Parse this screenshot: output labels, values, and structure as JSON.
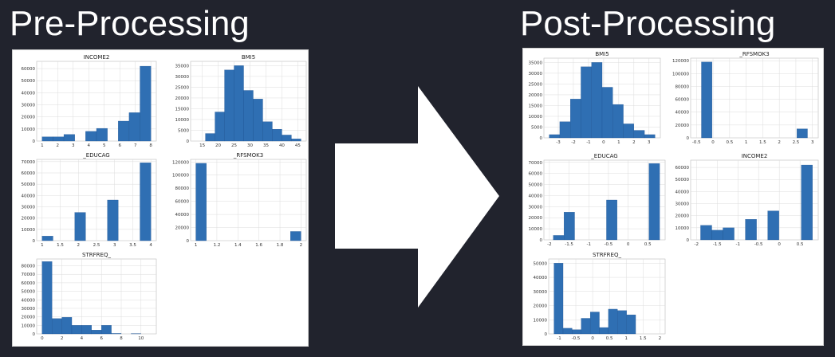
{
  "headings": {
    "pre": "Pre-Processing",
    "post": "Post-Processing"
  },
  "colors": {
    "background": "#21232d",
    "bar": "#2f6fb3",
    "grid": "#dcdcdc",
    "arrow": "#ffffff"
  },
  "icons": {
    "arrow": "right-arrow-icon"
  },
  "pre": {
    "charts": [
      {
        "type": "bar",
        "title": "INCOME2",
        "bins": [
          1.0,
          1.7,
          2.4,
          3.1,
          3.8,
          4.5,
          5.2,
          5.9,
          6.6,
          7.3,
          8.0
        ],
        "values": [
          3500,
          3500,
          5500,
          0,
          8000,
          10500,
          0,
          16500,
          23500,
          62000
        ],
        "xticks": [
          1,
          2,
          3,
          4,
          5,
          6,
          7,
          8
        ],
        "yticks": [
          0,
          10000,
          20000,
          30000,
          40000,
          50000,
          60000
        ],
        "ylim": [
          0,
          66000
        ]
      },
      {
        "type": "bar",
        "title": "BMI5",
        "bins": [
          13,
          16,
          19,
          22,
          25,
          28,
          31,
          34,
          37,
          40,
          43,
          46
        ],
        "values": [
          0,
          3500,
          13500,
          33000,
          35000,
          23500,
          19500,
          9000,
          5500,
          2800,
          1000
        ],
        "xticks": [
          15,
          20,
          25,
          30,
          35,
          40,
          45
        ],
        "yticks": [
          0,
          5000,
          10000,
          15000,
          20000,
          25000,
          30000,
          35000
        ],
        "ylim": [
          0,
          37000
        ]
      },
      {
        "type": "bar",
        "title": "_EDUCAG",
        "bins": [
          1.0,
          1.3,
          1.6,
          1.9,
          2.2,
          2.5,
          2.8,
          3.1,
          3.4,
          3.7,
          4.0
        ],
        "values": [
          4000,
          0,
          0,
          25000,
          0,
          0,
          36000,
          0,
          0,
          69000
        ],
        "xticks": [
          1.0,
          1.5,
          2.0,
          2.5,
          3.0,
          3.5,
          4.0
        ],
        "yticks": [
          0,
          10000,
          20000,
          30000,
          40000,
          50000,
          60000,
          70000
        ],
        "ylim": [
          0,
          72000
        ]
      },
      {
        "type": "bar",
        "title": "_RFSMOK3",
        "bins": [
          1.0,
          1.1,
          1.2,
          1.3,
          1.4,
          1.5,
          1.6,
          1.7,
          1.8,
          1.9,
          2.0
        ],
        "values": [
          118000,
          0,
          0,
          0,
          0,
          0,
          0,
          0,
          0,
          14000
        ],
        "xticks": [
          1.0,
          1.2,
          1.4,
          1.6,
          1.8,
          2.0
        ],
        "yticks": [
          0,
          20000,
          40000,
          60000,
          80000,
          100000,
          120000
        ],
        "ylim": [
          0,
          124000
        ]
      },
      {
        "type": "bar",
        "title": "STRFREQ_",
        "bins": [
          0,
          1,
          2,
          3,
          4,
          5,
          6,
          7,
          8,
          9,
          10,
          11
        ],
        "values": [
          85000,
          18000,
          19500,
          10000,
          10000,
          4500,
          10000,
          500,
          0,
          300,
          0
        ],
        "xticks": [
          0,
          2,
          4,
          6,
          8,
          10
        ],
        "yticks": [
          0,
          10000,
          20000,
          30000,
          40000,
          50000,
          60000,
          70000,
          80000
        ],
        "ylim": [
          0,
          88000
        ]
      }
    ]
  },
  "post": {
    "charts": [
      {
        "type": "bar",
        "title": "BMI5",
        "bins": [
          -3.6,
          -2.9,
          -2.2,
          -1.5,
          -0.8,
          -0.1,
          0.6,
          1.3,
          2.0,
          2.7,
          3.4
        ],
        "values": [
          1500,
          7500,
          18000,
          33000,
          35000,
          23500,
          15500,
          6500,
          3500,
          1500
        ],
        "xticks": [
          -3,
          -2,
          -1,
          0,
          1,
          2,
          3
        ],
        "yticks": [
          0,
          5000,
          10000,
          15000,
          20000,
          25000,
          30000,
          35000
        ],
        "ylim": [
          0,
          37000
        ]
      },
      {
        "type": "bar",
        "title": "_RFSMOK3",
        "bins": [
          -0.35,
          -0.03,
          0.29,
          0.61,
          0.93,
          1.25,
          1.57,
          1.89,
          2.21,
          2.53,
          2.85
        ],
        "values": [
          118000,
          0,
          0,
          0,
          0,
          0,
          0,
          0,
          0,
          14000
        ],
        "xticks": [
          -0.5,
          0.0,
          0.5,
          1.0,
          1.5,
          2.0,
          2.5,
          3.0
        ],
        "yticks": [
          0,
          20000,
          40000,
          60000,
          80000,
          100000,
          120000
        ],
        "ylim": [
          0,
          124000
        ]
      },
      {
        "type": "bar",
        "title": "_EDUCAG",
        "bins": [
          -1.9,
          -1.63,
          -1.36,
          -1.09,
          -0.82,
          -0.55,
          -0.28,
          -0.01,
          0.26,
          0.53,
          0.8
        ],
        "values": [
          4000,
          25000,
          0,
          0,
          0,
          36000,
          0,
          0,
          0,
          69000
        ],
        "xticks": [
          -2.0,
          -1.5,
          -1.0,
          -0.5,
          0.0,
          0.5
        ],
        "yticks": [
          0,
          10000,
          20000,
          30000,
          40000,
          50000,
          60000,
          70000
        ],
        "ylim": [
          0,
          72000
        ]
      },
      {
        "type": "bar",
        "title": "INCOME2",
        "bins": [
          -1.9,
          -1.63,
          -1.36,
          -1.09,
          -0.82,
          -0.55,
          -0.28,
          -0.01,
          0.26,
          0.53,
          0.8
        ],
        "values": [
          12000,
          8000,
          10000,
          0,
          17000,
          0,
          24000,
          0,
          0,
          62000
        ],
        "xticks": [
          -2.0,
          -1.5,
          -1.0,
          -0.5,
          0.0,
          0.5
        ],
        "yticks": [
          0,
          10000,
          20000,
          30000,
          40000,
          50000,
          60000
        ],
        "ylim": [
          0,
          66000
        ]
      },
      {
        "type": "bar",
        "title": "STRFREQ_",
        "bins": [
          -1.15,
          -0.88,
          -0.61,
          -0.34,
          -0.07,
          0.2,
          0.47,
          0.74,
          1.01,
          1.28,
          1.55
        ],
        "values": [
          50000,
          4000,
          3000,
          11000,
          15500,
          4500,
          17500,
          16500,
          13500,
          0
        ],
        "xticks": [
          -1.0,
          -0.5,
          0.0,
          0.5,
          1.0,
          1.5,
          2.0
        ],
        "yticks": [
          0,
          10000,
          20000,
          30000,
          40000,
          50000
        ],
        "ylim": [
          0,
          53000
        ]
      }
    ]
  }
}
